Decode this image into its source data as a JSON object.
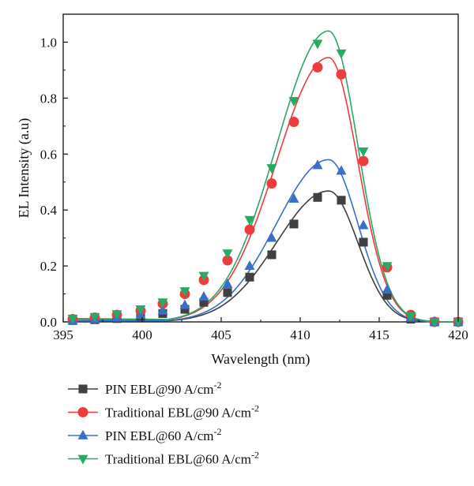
{
  "chart_data": {
    "type": "line",
    "title": "",
    "xlabel": "Wavelength (nm)",
    "ylabel": "EL Intensity (a.u)",
    "xlim": [
      395,
      420
    ],
    "ylim": [
      0,
      1.1
    ],
    "xticks": [
      395,
      400,
      405,
      410,
      415,
      420
    ],
    "yticks": [
      0.0,
      0.2,
      0.4,
      0.6,
      0.8,
      1.0
    ],
    "xtick_labels": [
      "395",
      "400",
      "405",
      "410",
      "415",
      "420"
    ],
    "ytick_labels": [
      "0.0",
      "0.2",
      "0.4",
      "0.6",
      "0.8",
      "1.0"
    ],
    "grid": false,
    "legend_position": "bottom",
    "x": [
      395.6,
      397.0,
      398.4,
      399.9,
      401.3,
      402.7,
      403.9,
      405.4,
      406.8,
      408.2,
      409.6,
      411.1,
      412.6,
      414.0,
      415.5,
      417.0,
      418.5,
      420.0
    ],
    "series": [
      {
        "name": "PIN EBL@90 A/cm",
        "superscript": "-2",
        "marker": "square",
        "color": "#404040",
        "values": [
          0.005,
          0.008,
          0.012,
          0.02,
          0.03,
          0.045,
          0.07,
          0.105,
          0.16,
          0.24,
          0.35,
          0.445,
          0.435,
          0.285,
          0.095,
          0.01,
          0.0,
          0.0
        ]
      },
      {
        "name": "Traditional EBL@90 A/cm",
        "superscript": "-2",
        "marker": "circle",
        "color": "#ee3b3b",
        "values": [
          0.01,
          0.015,
          0.025,
          0.04,
          0.065,
          0.1,
          0.15,
          0.22,
          0.33,
          0.495,
          0.715,
          0.91,
          0.885,
          0.575,
          0.195,
          0.025,
          0.0,
          0.0
        ]
      },
      {
        "name": "PIN EBL@60 A/cm",
        "superscript": "-2",
        "marker": "triangle-up",
        "color": "#3a6fc6",
        "values": [
          0.005,
          0.01,
          0.015,
          0.025,
          0.04,
          0.06,
          0.09,
          0.135,
          0.2,
          0.3,
          0.44,
          0.56,
          0.54,
          0.345,
          0.115,
          0.015,
          0.0,
          0.0
        ]
      },
      {
        "name": "Traditional EBL@60 A/cm",
        "superscript": "-2",
        "marker": "triangle-down",
        "color": "#2aa865",
        "values": [
          0.012,
          0.018,
          0.028,
          0.045,
          0.07,
          0.11,
          0.165,
          0.245,
          0.365,
          0.55,
          0.79,
          0.995,
          0.96,
          0.61,
          0.2,
          0.02,
          0.0,
          0.0
        ]
      }
    ],
    "fit_curves": [
      {
        "series": 0,
        "peak_x": 411.8,
        "peak_y": 0.468
      },
      {
        "series": 1,
        "peak_x": 411.8,
        "peak_y": 0.945
      },
      {
        "series": 2,
        "peak_x": 411.8,
        "peak_y": 0.58
      },
      {
        "series": 3,
        "peak_x": 411.8,
        "peak_y": 1.04
      }
    ]
  }
}
